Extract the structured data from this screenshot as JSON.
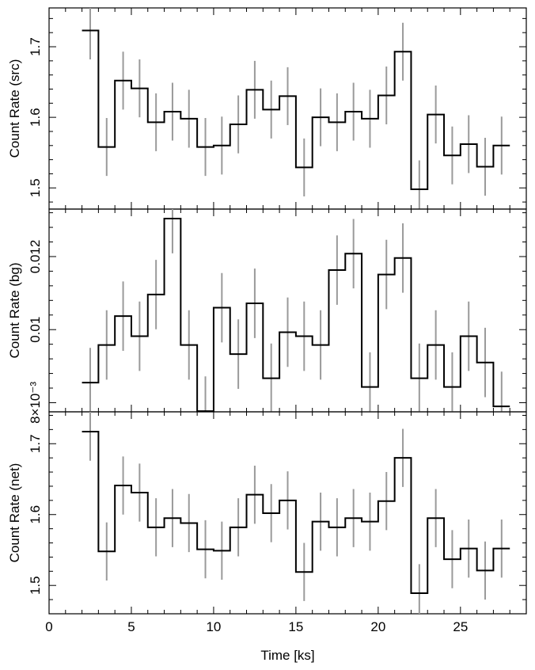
{
  "chart_data": {
    "type": "step",
    "xlabel": "Time [ks]",
    "xlim": [
      0,
      29
    ],
    "xticks": [
      0,
      5,
      10,
      15,
      20,
      25
    ],
    "xtick_labels": [
      "0",
      "5",
      "10",
      "15",
      "20",
      "25"
    ],
    "panels": [
      {
        "ylabel": "Count Rate (src)",
        "ylim": [
          1.47,
          1.755
        ],
        "yticks": [
          1.5,
          1.6,
          1.7
        ],
        "ytick_labels": [
          "1.5",
          "1.6",
          "1.7"
        ],
        "x": [
          2.5,
          3.5,
          4.5,
          5.5,
          6.5,
          7.5,
          8.5,
          9.5,
          10.5,
          11.5,
          12.5,
          13.5,
          14.5,
          15.5,
          16.5,
          17.5,
          18.5,
          19.5,
          20.5,
          21.5,
          22.5,
          23.5,
          24.5,
          25.5,
          26.5,
          27.5
        ],
        "y": [
          1.723,
          1.558,
          1.652,
          1.641,
          1.593,
          1.608,
          1.598,
          1.558,
          1.56,
          1.59,
          1.639,
          1.611,
          1.63,
          1.529,
          1.6,
          1.593,
          1.608,
          1.598,
          1.631,
          1.693,
          1.498,
          1.604,
          1.546,
          1.562,
          1.53,
          1.56
        ],
        "err": [
          0.041,
          0.041,
          0.041,
          0.041,
          0.041,
          0.041,
          0.041,
          0.041,
          0.041,
          0.041,
          0.041,
          0.041,
          0.041,
          0.041,
          0.041,
          0.041,
          0.041,
          0.041,
          0.041,
          0.041,
          0.041,
          0.041,
          0.041,
          0.041,
          0.041,
          0.041
        ]
      },
      {
        "ylabel": "Count Rate (bg)",
        "ylim": [
          0.00775,
          0.0133
        ],
        "yticks": [
          0.008,
          0.01,
          0.012
        ],
        "ytick_labels": [
          "8×10⁻³",
          "0.01",
          "0.012"
        ],
        "x": [
          2.5,
          3.5,
          4.5,
          5.5,
          6.5,
          7.5,
          8.5,
          9.5,
          10.5,
          11.5,
          12.5,
          13.5,
          14.5,
          15.5,
          16.5,
          17.5,
          18.5,
          19.5,
          20.5,
          21.5,
          22.5,
          23.5,
          24.5,
          25.5,
          26.5,
          27.5
        ],
        "y": [
          0.00855,
          0.00958,
          0.01037,
          0.00982,
          0.01096,
          0.01304,
          0.00958,
          0.00777,
          0.0106,
          0.00933,
          0.01072,
          0.00867,
          0.00993,
          0.00982,
          0.00958,
          0.01163,
          0.01208,
          0.00843,
          0.01151,
          0.01196,
          0.00867,
          0.00958,
          0.00843,
          0.00982,
          0.0091,
          0.0079
        ],
        "err": [
          0.00095,
          0.00095,
          0.00095,
          0.00095,
          0.00095,
          0.00095,
          0.00095,
          0.00095,
          0.00095,
          0.00095,
          0.00095,
          0.00095,
          0.00095,
          0.00095,
          0.00095,
          0.00095,
          0.00095,
          0.00095,
          0.00095,
          0.00095,
          0.00095,
          0.00095,
          0.00095,
          0.00095,
          0.00095,
          0.00095
        ]
      },
      {
        "ylabel": "Count Rate (net)",
        "ylim": [
          1.46,
          1.745
        ],
        "yticks": [
          1.5,
          1.6,
          1.7
        ],
        "ytick_labels": [
          "1.5",
          "1.6",
          "1.7"
        ],
        "x": [
          2.5,
          3.5,
          4.5,
          5.5,
          6.5,
          7.5,
          8.5,
          9.5,
          10.5,
          11.5,
          12.5,
          13.5,
          14.5,
          15.5,
          16.5,
          17.5,
          18.5,
          19.5,
          20.5,
          21.5,
          22.5,
          23.5,
          24.5,
          25.5,
          26.5,
          27.5
        ],
        "y": [
          1.717,
          1.548,
          1.641,
          1.631,
          1.582,
          1.595,
          1.588,
          1.551,
          1.549,
          1.582,
          1.628,
          1.602,
          1.62,
          1.519,
          1.59,
          1.582,
          1.595,
          1.59,
          1.619,
          1.68,
          1.489,
          1.595,
          1.537,
          1.552,
          1.521,
          1.552
        ],
        "err": [
          0.041,
          0.041,
          0.041,
          0.041,
          0.041,
          0.041,
          0.041,
          0.041,
          0.041,
          0.041,
          0.041,
          0.041,
          0.041,
          0.041,
          0.041,
          0.041,
          0.041,
          0.041,
          0.041,
          0.041,
          0.041,
          0.041,
          0.041,
          0.041,
          0.041,
          0.041
        ]
      }
    ],
    "bin_width": 1.0,
    "line_color": "#000000",
    "error_color": "#9a9a9a",
    "grid": false
  }
}
